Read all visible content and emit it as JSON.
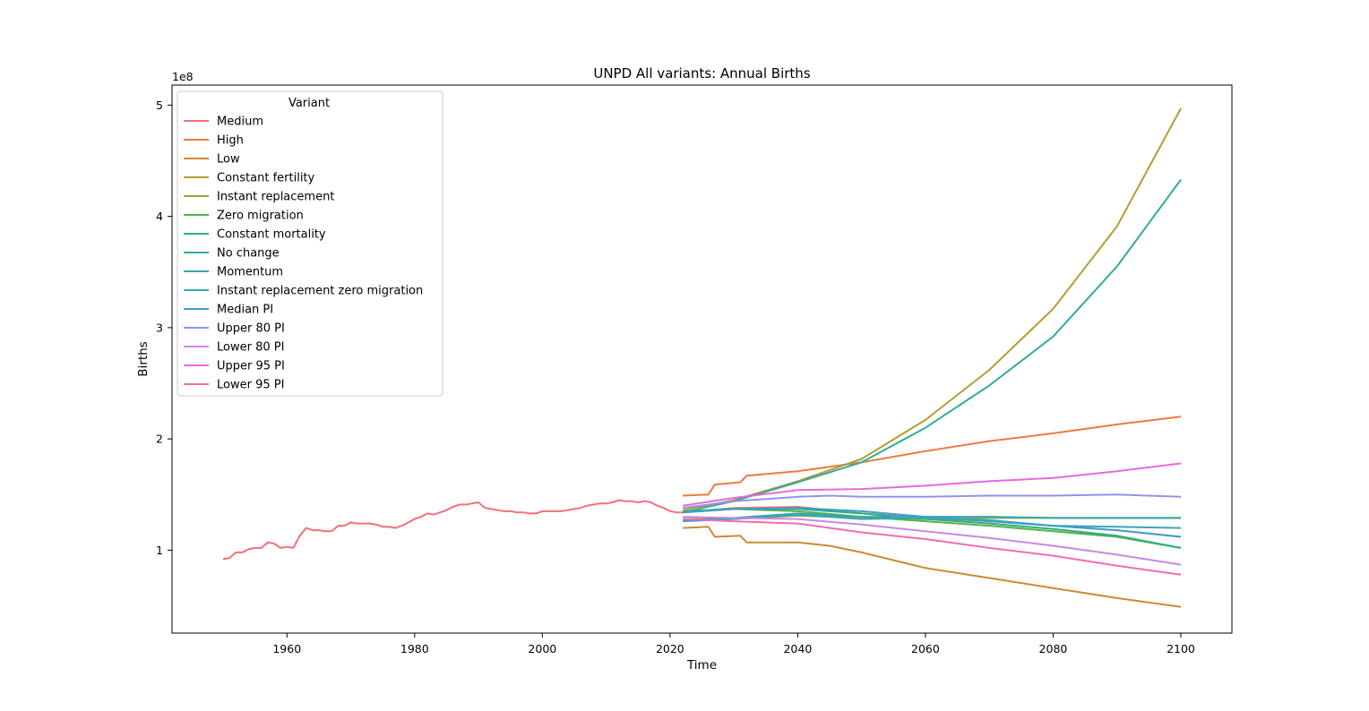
{
  "chart_data": {
    "type": "line",
    "title": "UNPD All variants: Annual Births",
    "xlabel": "Time",
    "ylabel": "Births",
    "y_offset_label": "1e8",
    "xlim": [
      1942,
      2108
    ],
    "ylim": [
      0.255,
      5.18
    ],
    "xticks": [
      1960,
      1980,
      2000,
      2020,
      2040,
      2060,
      2080,
      2100
    ],
    "yticks": [
      1,
      2,
      3,
      4,
      5
    ],
    "grid": false,
    "legend": {
      "title": "Variant",
      "placement": "top-left"
    },
    "series": [
      {
        "name": "Medium",
        "color": "#f3707a",
        "x": [
          1950,
          1951,
          1952,
          1953,
          1954,
          1955,
          1956,
          1957,
          1958,
          1959,
          1960,
          1961,
          1962,
          1963,
          1964,
          1965,
          1966,
          1967,
          1968,
          1969,
          1970,
          1971,
          1972,
          1973,
          1974,
          1975,
          1976,
          1977,
          1978,
          1979,
          1980,
          1981,
          1982,
          1983,
          1984,
          1985,
          1986,
          1987,
          1988,
          1989,
          1990,
          1991,
          1992,
          1993,
          1994,
          1995,
          1996,
          1997,
          1998,
          1999,
          2000,
          2001,
          2002,
          2003,
          2004,
          2005,
          2006,
          2007,
          2008,
          2009,
          2010,
          2011,
          2012,
          2013,
          2014,
          2015,
          2016,
          2017,
          2018,
          2019,
          2020,
          2021,
          2022,
          2030,
          2040,
          2050,
          2060,
          2070,
          2080,
          2090,
          2100
        ],
        "y": [
          0.92,
          0.93,
          0.98,
          0.98,
          1.01,
          1.02,
          1.02,
          1.07,
          1.06,
          1.02,
          1.03,
          1.02,
          1.13,
          1.2,
          1.18,
          1.18,
          1.17,
          1.17,
          1.22,
          1.22,
          1.25,
          1.24,
          1.24,
          1.24,
          1.23,
          1.21,
          1.21,
          1.2,
          1.22,
          1.25,
          1.28,
          1.3,
          1.33,
          1.32,
          1.34,
          1.36,
          1.39,
          1.41,
          1.41,
          1.42,
          1.43,
          1.38,
          1.37,
          1.36,
          1.35,
          1.35,
          1.34,
          1.34,
          1.33,
          1.33,
          1.35,
          1.35,
          1.35,
          1.35,
          1.36,
          1.37,
          1.38,
          1.4,
          1.41,
          1.42,
          1.42,
          1.43,
          1.45,
          1.44,
          1.44,
          1.43,
          1.44,
          1.43,
          1.4,
          1.38,
          1.35,
          1.34,
          1.34,
          1.38,
          1.39,
          1.33,
          1.29,
          1.26,
          1.22,
          1.18,
          1.12
        ]
      },
      {
        "name": "High",
        "color": "#ed7a3e",
        "x": [
          2022,
          2026,
          2027,
          2031,
          2032,
          2040,
          2050,
          2060,
          2070,
          2080,
          2090,
          2100
        ],
        "y": [
          1.49,
          1.5,
          1.59,
          1.61,
          1.67,
          1.71,
          1.79,
          1.89,
          1.98,
          2.05,
          2.13,
          2.2
        ]
      },
      {
        "name": "Low",
        "color": "#cc8a35",
        "x": [
          2022,
          2026,
          2027,
          2031,
          2032,
          2040,
          2045,
          2050,
          2060,
          2070,
          2080,
          2090,
          2100
        ],
        "y": [
          1.2,
          1.21,
          1.12,
          1.13,
          1.07,
          1.07,
          1.04,
          0.98,
          0.84,
          0.75,
          0.66,
          0.57,
          0.49
        ]
      },
      {
        "name": "Constant fertility",
        "color": "#b09e32",
        "x": [
          2022,
          2030,
          2040,
          2050,
          2060,
          2070,
          2080,
          2090,
          2100
        ],
        "y": [
          1.36,
          1.45,
          1.62,
          1.82,
          2.17,
          2.62,
          3.17,
          3.91,
          4.97
        ]
      },
      {
        "name": "Instant replacement",
        "color": "#97a735",
        "x": [
          2022,
          2030,
          2040,
          2050,
          2060,
          2070,
          2080,
          2090,
          2100
        ],
        "y": [
          1.28,
          1.28,
          1.31,
          1.29,
          1.28,
          1.29,
          1.29,
          1.29,
          1.29
        ]
      },
      {
        "name": "Zero migration",
        "color": "#56b24a",
        "x": [
          2022,
          2030,
          2040,
          2050,
          2060,
          2070,
          2080,
          2090,
          2100
        ],
        "y": [
          1.35,
          1.37,
          1.35,
          1.3,
          1.26,
          1.22,
          1.17,
          1.12,
          1.02
        ]
      },
      {
        "name": "Constant mortality",
        "color": "#2fae7a",
        "x": [
          2022,
          2030,
          2040,
          2050,
          2060,
          2070,
          2080,
          2090,
          2100
        ],
        "y": [
          1.34,
          1.37,
          1.37,
          1.33,
          1.28,
          1.24,
          1.19,
          1.13,
          1.02
        ]
      },
      {
        "name": "No change",
        "color": "#33ab9a",
        "x": [
          2022,
          2030,
          2040,
          2050,
          2060,
          2070,
          2080,
          2090,
          2100
        ],
        "y": [
          1.34,
          1.44,
          1.61,
          1.79,
          2.1,
          2.48,
          2.92,
          3.55,
          4.33
        ]
      },
      {
        "name": "Momentum",
        "color": "#35a8a9",
        "x": [
          2022,
          2030,
          2040,
          2050,
          2060,
          2070,
          2080,
          2090,
          2100
        ],
        "y": [
          1.27,
          1.29,
          1.33,
          1.3,
          1.3,
          1.3,
          1.29,
          1.29,
          1.29
        ]
      },
      {
        "name": "Instant replacement zero migration",
        "color": "#38a6b8",
        "x": [
          2022,
          2030,
          2040,
          2050,
          2060,
          2070,
          2080,
          2090,
          2100
        ],
        "y": [
          1.26,
          1.28,
          1.32,
          1.28,
          1.29,
          1.27,
          1.22,
          1.21,
          1.2
        ]
      },
      {
        "name": "Median PI",
        "color": "#3aa0cd",
        "x": [
          2022,
          2030,
          2040,
          2050,
          2060,
          2070,
          2080,
          2090,
          2100
        ],
        "y": [
          1.34,
          1.37,
          1.38,
          1.35,
          1.3,
          1.26,
          1.22,
          1.18,
          1.12
        ]
      },
      {
        "name": "Upper 80 PI",
        "color": "#8f95e7",
        "x": [
          2022,
          2030,
          2040,
          2045,
          2050,
          2060,
          2070,
          2080,
          2090,
          2100
        ],
        "y": [
          1.38,
          1.44,
          1.48,
          1.49,
          1.48,
          1.48,
          1.49,
          1.49,
          1.5,
          1.48
        ]
      },
      {
        "name": "Lower 80 PI",
        "color": "#c888e4",
        "x": [
          2022,
          2030,
          2040,
          2050,
          2060,
          2070,
          2080,
          2090,
          2100
        ],
        "y": [
          1.3,
          1.29,
          1.28,
          1.23,
          1.17,
          1.11,
          1.04,
          0.96,
          0.87
        ]
      },
      {
        "name": "Upper 95 PI",
        "color": "#e56ae0",
        "x": [
          2022,
          2030,
          2040,
          2050,
          2060,
          2070,
          2080,
          2090,
          2100
        ],
        "y": [
          1.4,
          1.47,
          1.54,
          1.55,
          1.58,
          1.62,
          1.65,
          1.71,
          1.78
        ]
      },
      {
        "name": "Lower 95 PI",
        "color": "#f26daf",
        "x": [
          2022,
          2030,
          2040,
          2050,
          2060,
          2070,
          2080,
          2090,
          2100
        ],
        "y": [
          1.28,
          1.26,
          1.24,
          1.16,
          1.1,
          1.02,
          0.95,
          0.86,
          0.78
        ]
      }
    ]
  }
}
